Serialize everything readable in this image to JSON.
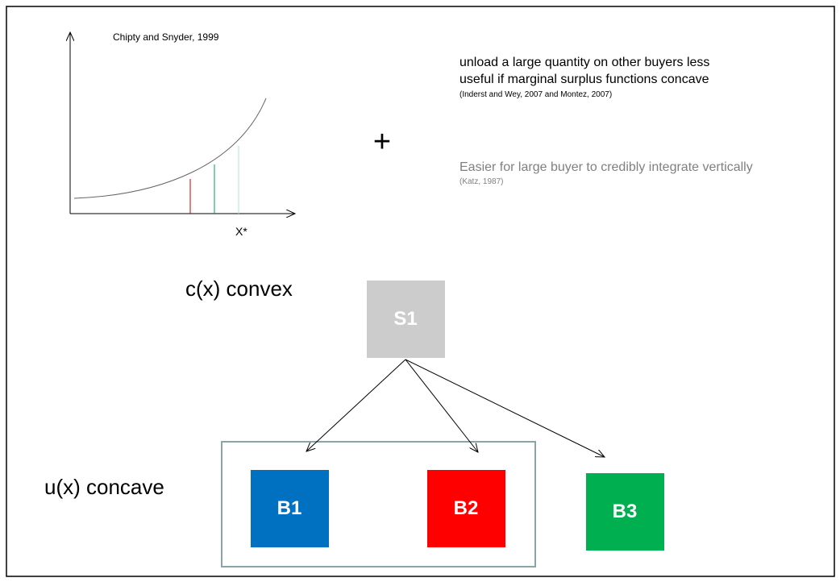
{
  "graph": {
    "source": "Chipty and Snyder, 1999",
    "x_label": "X*"
  },
  "plus": "+",
  "notes": [
    {
      "lines": [
        "unload a large quantity on other buyers less",
        "useful if marginal surplus functions concave"
      ],
      "citation": "(Inderst and Wey, 2007 and Montez, 2007)"
    },
    {
      "lines": [
        "Easier for large buyer to credibly integrate vertically"
      ],
      "citation": "(Katz, 1987)"
    }
  ],
  "labels": {
    "supplier": "c(x) convex",
    "buyers": "u(x) concave"
  },
  "nodes": [
    {
      "label": "S1",
      "color": "#cccccc"
    },
    {
      "label": "B1",
      "color": "#0070c0"
    },
    {
      "label": "B2",
      "color": "#ff0000"
    },
    {
      "label": "B3",
      "color": "#00b050"
    }
  ]
}
